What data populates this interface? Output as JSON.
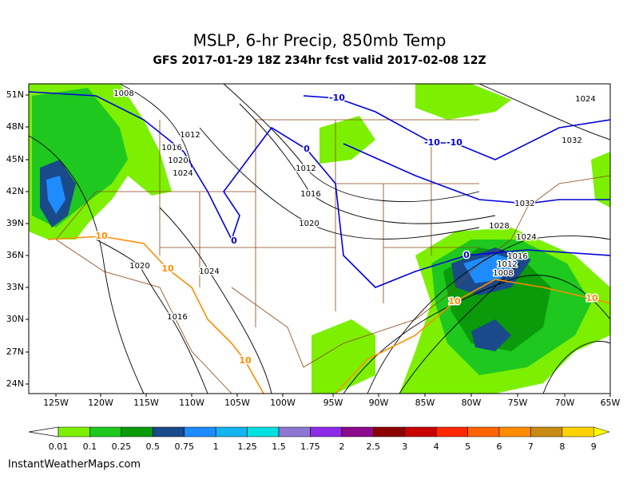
{
  "header": {
    "title": "MSLP, 6-hr Precip, 850mb Temp",
    "subtitle": "GFS 2017-01-29 18Z 234hr fcst valid 2017-02-08 12Z"
  },
  "map": {
    "lat_labels": [
      "51N",
      "48N",
      "45N",
      "42N",
      "39N",
      "36N",
      "33N",
      "30N",
      "27N",
      "24N"
    ],
    "lon_labels": [
      "125W",
      "120W",
      "115W",
      "110W",
      "105W",
      "100W",
      "95W",
      "90W",
      "85W",
      "80W",
      "75W",
      "70W",
      "65W"
    ],
    "isobar_labels": [
      "1008",
      "1012",
      "1016",
      "1020",
      "1024",
      "1012",
      "1016",
      "1020",
      "1024",
      "1020",
      "1016",
      "1024",
      "1032",
      "1032",
      "1028",
      "1024",
      "1016",
      "1012",
      "1008"
    ],
    "temperature_labels": [
      "-10",
      "-10",
      "-10",
      "0",
      "0",
      "0",
      "10",
      "10",
      "10",
      "10",
      "10"
    ]
  },
  "colorbar": {
    "labels": [
      "0.01",
      "0.1",
      "0.25",
      "0.5",
      "0.75",
      "1",
      "1.25",
      "1.5",
      "1.75",
      "2",
      "2.5",
      "3",
      "4",
      "5",
      "6",
      "7",
      "8",
      "9"
    ],
    "colors": [
      "#7cf000",
      "#1ec81e",
      "#0a9a0a",
      "#1a4a8a",
      "#1e8cff",
      "#14b4f0",
      "#00e0e0",
      "#8c78d2",
      "#8c2ce6",
      "#8c0a8c",
      "#8c0000",
      "#c80000",
      "#ff2800",
      "#ff6400",
      "#ff8c00",
      "#c88c14",
      "#ffd200",
      "#ffff00"
    ]
  },
  "footer": {
    "credit": "InstantWeatherMaps.com"
  }
}
